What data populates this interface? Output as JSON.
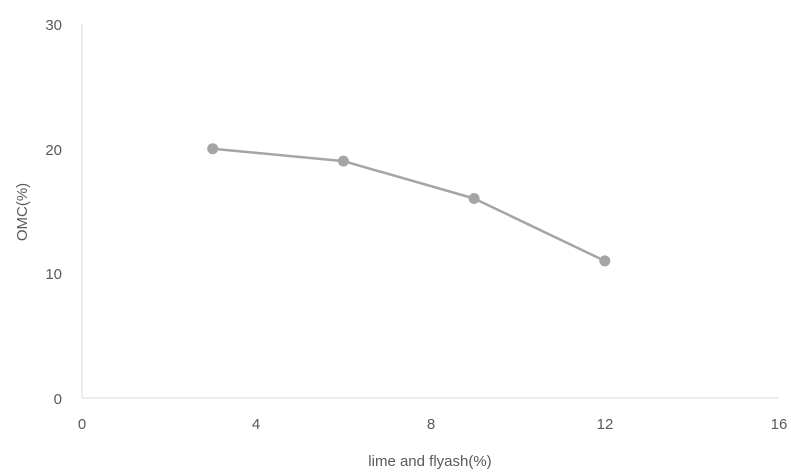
{
  "chart_data": {
    "type": "line",
    "title": "",
    "xlabel": "lime and flyash(%)",
    "ylabel": "OMC(%)",
    "xlim": [
      0,
      16
    ],
    "ylim": [
      0,
      30
    ],
    "x_ticks": [
      "0",
      "4",
      "8",
      "12",
      "16"
    ],
    "y_ticks": [
      "0",
      "10",
      "20",
      "30"
    ],
    "grid": false,
    "legend": "none",
    "series": [
      {
        "color": "#a5a5a5",
        "marker": "circle",
        "x": [
          3,
          6,
          9,
          12
        ],
        "y": [
          20,
          19,
          16,
          11
        ]
      }
    ]
  }
}
